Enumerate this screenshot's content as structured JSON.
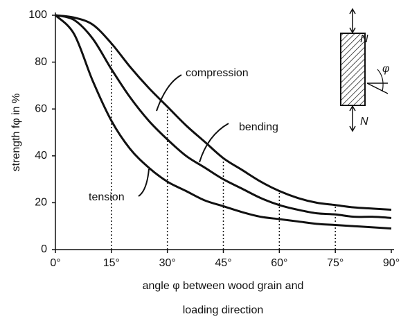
{
  "chart_data": {
    "type": "line",
    "ylabel": "strength fφ in %",
    "xlabel": [
      "angle φ between wood grain and",
      "loading direction"
    ],
    "x": [
      0,
      5,
      10,
      15,
      20,
      25,
      30,
      35,
      40,
      45,
      50,
      55,
      60,
      65,
      70,
      75,
      80,
      85,
      90
    ],
    "series": [
      {
        "name": "compression",
        "color": "#111111",
        "values": [
          100,
          99,
          96,
          88,
          78,
          69,
          61,
          53,
          46,
          39,
          34,
          29,
          25,
          22,
          20,
          19,
          18,
          17.5,
          17
        ]
      },
      {
        "name": "bending",
        "color": "#111111",
        "values": [
          100,
          98,
          90,
          77,
          65,
          55,
          47,
          40,
          35,
          30,
          26,
          22,
          19,
          17,
          15.5,
          15,
          14,
          14,
          13.5
        ]
      },
      {
        "name": "tension",
        "color": "#111111",
        "values": [
          100,
          92,
          72,
          55,
          43,
          35,
          29,
          25,
          21,
          18.5,
          16,
          14,
          13,
          12,
          11,
          10.5,
          10,
          9.5,
          9
        ]
      }
    ],
    "xlim": [
      0,
      90
    ],
    "xticks": [
      {
        "value": 0,
        "label": "0°"
      },
      {
        "value": 15,
        "label": "15°"
      },
      {
        "value": 30,
        "label": "30°"
      },
      {
        "value": 45,
        "label": "45°"
      },
      {
        "value": 60,
        "label": "60°"
      },
      {
        "value": 75,
        "label": "75°"
      },
      {
        "value": 90,
        "label": "90°"
      }
    ],
    "ylim": [
      0,
      100
    ],
    "yticks": [
      0,
      20,
      40,
      60,
      80,
      100
    ],
    "grid": false,
    "legend": false,
    "diagram_labels": [
      "N",
      "N",
      "φ"
    ]
  }
}
